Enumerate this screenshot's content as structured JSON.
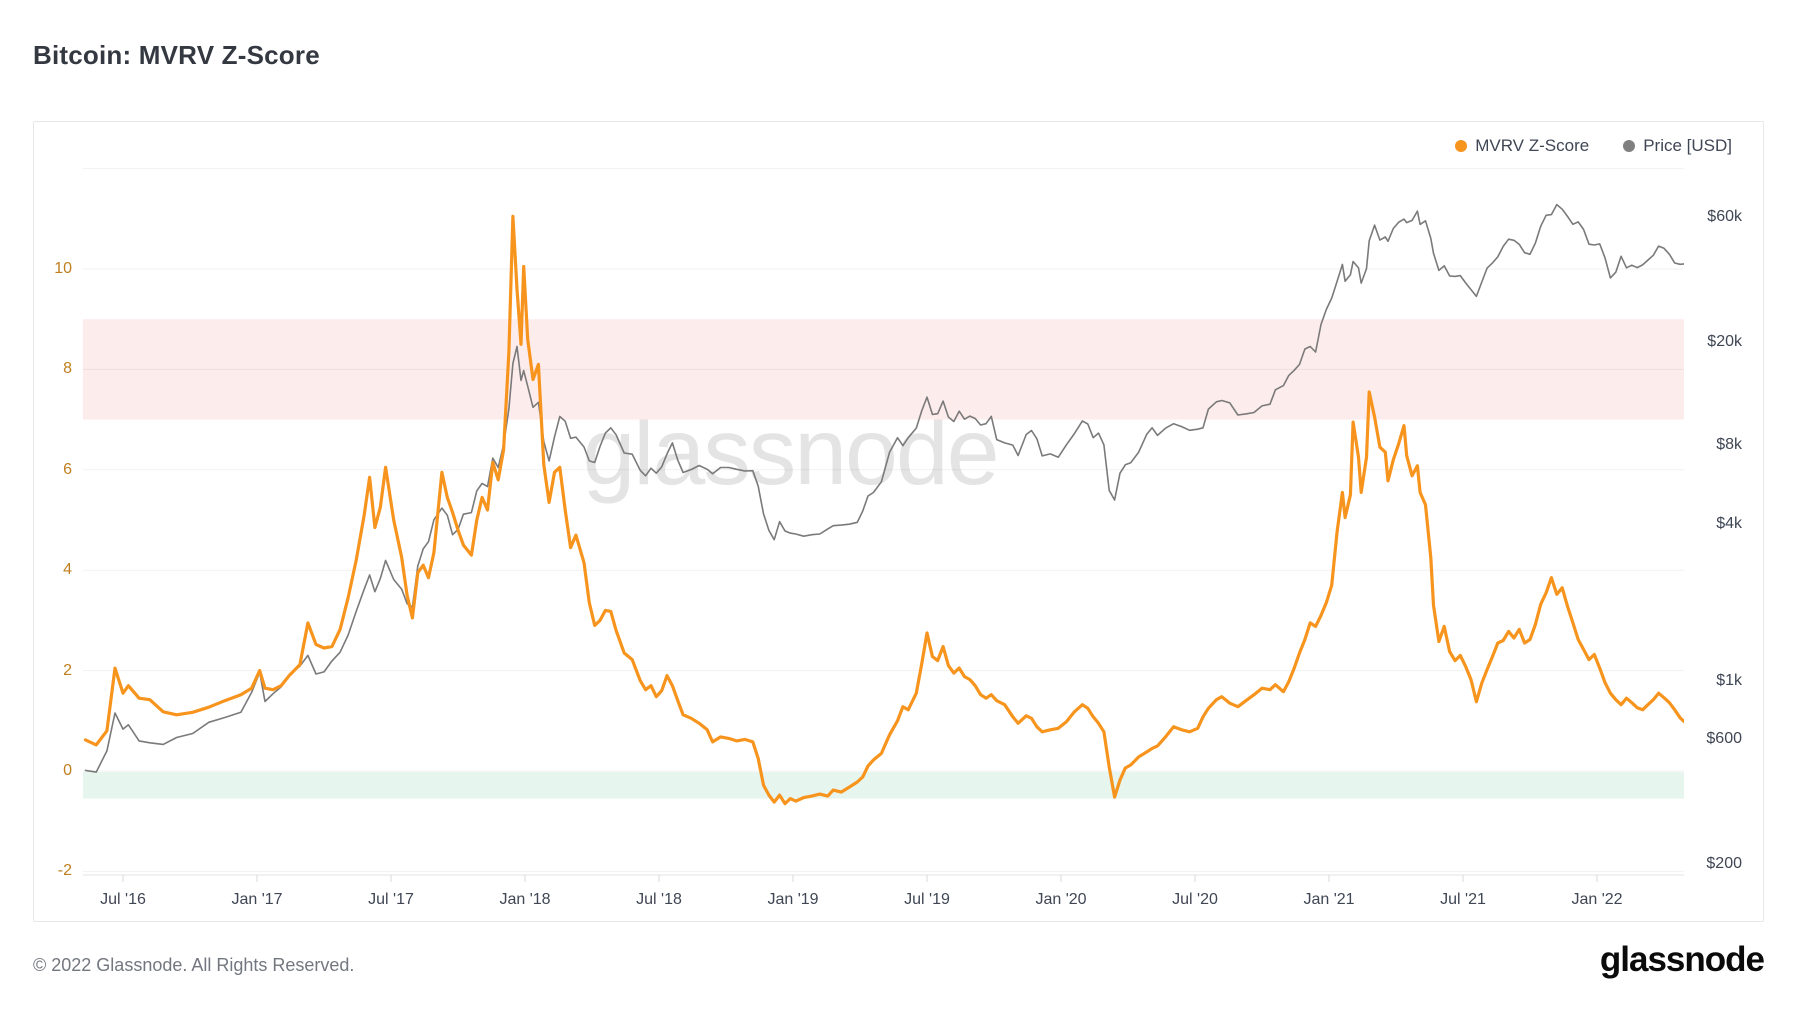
{
  "page": {
    "title": "Bitcoin: MVRV Z-Score",
    "watermark": "glassnode",
    "footer_copyright": "© 2022 Glassnode. All Rights Reserved.",
    "brand_logo": "glassnode"
  },
  "legend": [
    {
      "label": "MVRV Z-Score",
      "color": "#f7941d"
    },
    {
      "label": "Price [USD]",
      "color": "#808080"
    }
  ],
  "axes": {
    "left": {
      "ticks": [
        -2,
        0,
        2,
        4,
        6,
        8,
        10
      ],
      "color": "#c07f1f"
    },
    "right": {
      "ticks": [
        {
          "label": "$200",
          "value": 200
        },
        {
          "label": "$600",
          "value": 600
        },
        {
          "label": "$1k",
          "value": 1000
        },
        {
          "label": "$4k",
          "value": 4000
        },
        {
          "label": "$8k",
          "value": 8000
        },
        {
          "label": "$20k",
          "value": 20000
        },
        {
          "label": "$60k",
          "value": 60000
        }
      ],
      "scale": "log",
      "color": "#3f4654"
    },
    "bottom": {
      "ticks": [
        {
          "label": "Jul '16",
          "t": 2016.5
        },
        {
          "label": "Jan '17",
          "t": 2017.0
        },
        {
          "label": "Jul '17",
          "t": 2017.5
        },
        {
          "label": "Jan '18",
          "t": 2018.0
        },
        {
          "label": "Jul '18",
          "t": 2018.5
        },
        {
          "label": "Jan '19",
          "t": 2019.0
        },
        {
          "label": "Jul '19",
          "t": 2019.5
        },
        {
          "label": "Jan '20",
          "t": 2020.0
        },
        {
          "label": "Jul '20",
          "t": 2020.5
        },
        {
          "label": "Jan '21",
          "t": 2021.0
        },
        {
          "label": "Jul '21",
          "t": 2021.5
        },
        {
          "label": "Jan '22",
          "t": 2022.0
        }
      ]
    }
  },
  "zones": {
    "overvalued": {
      "from": 7.0,
      "to": 9.0,
      "color": "#fdecec"
    },
    "undervalued": {
      "from": -0.55,
      "to": -0.02,
      "color": "#e7f5ef"
    }
  },
  "chart_data": {
    "type": "line",
    "x_label": "Date",
    "x_range": [
      2016.35,
      2022.33
    ],
    "z_axis": {
      "name": "MVRV Z-Score",
      "ticks": [
        -2,
        0,
        2,
        4,
        6,
        8,
        10
      ]
    },
    "price_axis": {
      "name": "Price [USD]",
      "scale": "log",
      "ticks": [
        "$200",
        "$600",
        "$1k",
        "$4k",
        "$8k",
        "$20k",
        "$60k"
      ]
    },
    "series": [
      {
        "name": "MVRV Z-Score",
        "color": "#f7941d",
        "width": 3.2,
        "column": 1,
        "yaxis": "z"
      },
      {
        "name": "Price [USD]",
        "color": "#7a7a7a",
        "width": 1.6,
        "column": 2,
        "yaxis": "price"
      }
    ],
    "points": [
      [
        2016.36,
        0.62,
        455
      ],
      [
        2016.4,
        0.52,
        448
      ],
      [
        2016.44,
        0.8,
        540
      ],
      [
        2016.47,
        2.05,
        755
      ],
      [
        2016.5,
        1.55,
        655
      ],
      [
        2016.52,
        1.7,
        680
      ],
      [
        2016.56,
        1.45,
        590
      ],
      [
        2016.6,
        1.42,
        580
      ],
      [
        2016.65,
        1.18,
        572
      ],
      [
        2016.7,
        1.12,
        608
      ],
      [
        2016.76,
        1.17,
        630
      ],
      [
        2016.82,
        1.27,
        695
      ],
      [
        2016.88,
        1.4,
        725
      ],
      [
        2016.94,
        1.52,
        760
      ],
      [
        2016.98,
        1.65,
        905
      ],
      [
        2017.01,
        2.0,
        1080
      ],
      [
        2017.03,
        1.65,
        835
      ],
      [
        2017.06,
        1.62,
        895
      ],
      [
        2017.09,
        1.7,
        950
      ],
      [
        2017.12,
        1.9,
        1060
      ],
      [
        2017.16,
        2.12,
        1140
      ],
      [
        2017.19,
        2.95,
        1255
      ],
      [
        2017.22,
        2.52,
        1065
      ],
      [
        2017.25,
        2.45,
        1085
      ],
      [
        2017.28,
        2.48,
        1195
      ],
      [
        2017.31,
        2.82,
        1290
      ],
      [
        2017.34,
        3.45,
        1500
      ],
      [
        2017.37,
        4.2,
        1850
      ],
      [
        2017.4,
        5.1,
        2250
      ],
      [
        2017.42,
        5.85,
        2550
      ],
      [
        2017.44,
        4.85,
        2200
      ],
      [
        2017.46,
        5.25,
        2470
      ],
      [
        2017.48,
        6.05,
        2900
      ],
      [
        2017.51,
        5.0,
        2450
      ],
      [
        2017.54,
        4.25,
        2250
      ],
      [
        2017.56,
        3.5,
        1980
      ],
      [
        2017.58,
        3.05,
        1920
      ],
      [
        2017.6,
        3.95,
        2760
      ],
      [
        2017.62,
        4.1,
        3210
      ],
      [
        2017.64,
        3.85,
        3420
      ],
      [
        2017.66,
        4.35,
        4150
      ],
      [
        2017.69,
        5.95,
        4600
      ],
      [
        2017.71,
        5.45,
        4320
      ],
      [
        2017.73,
        5.15,
        3640
      ],
      [
        2017.75,
        4.8,
        3810
      ],
      [
        2017.77,
        4.5,
        4360
      ],
      [
        2017.8,
        4.3,
        4420
      ],
      [
        2017.82,
        5.0,
        5360
      ],
      [
        2017.84,
        5.45,
        5720
      ],
      [
        2017.86,
        5.2,
        5560
      ],
      [
        2017.88,
        6.15,
        7150
      ],
      [
        2017.9,
        5.8,
        6580
      ],
      [
        2017.92,
        6.4,
        8060
      ],
      [
        2017.94,
        8.35,
        11050
      ],
      [
        2017.955,
        11.05,
        16480
      ],
      [
        2017.97,
        9.6,
        19150
      ],
      [
        2017.985,
        8.5,
        14200
      ],
      [
        2017.995,
        10.05,
        15480
      ],
      [
        2018.01,
        8.6,
        13480
      ],
      [
        2018.03,
        7.8,
        11200
      ],
      [
        2018.05,
        8.1,
        11700
      ],
      [
        2018.07,
        6.1,
        8270
      ],
      [
        2018.09,
        5.35,
        6980
      ],
      [
        2018.11,
        5.95,
        8620
      ],
      [
        2018.13,
        6.05,
        10320
      ],
      [
        2018.15,
        5.2,
        9900
      ],
      [
        2018.17,
        4.45,
        8520
      ],
      [
        2018.19,
        4.7,
        8610
      ],
      [
        2018.22,
        4.15,
        7890
      ],
      [
        2018.24,
        3.35,
        6980
      ],
      [
        2018.26,
        2.9,
        6880
      ],
      [
        2018.28,
        3.0,
        7920
      ],
      [
        2018.3,
        3.2,
        8920
      ],
      [
        2018.32,
        3.18,
        9340
      ],
      [
        2018.34,
        2.8,
        8780
      ],
      [
        2018.37,
        2.35,
        7480
      ],
      [
        2018.4,
        2.22,
        7400
      ],
      [
        2018.43,
        1.8,
        6420
      ],
      [
        2018.45,
        1.62,
        6120
      ],
      [
        2018.47,
        1.7,
        6540
      ],
      [
        2018.49,
        1.48,
        6260
      ],
      [
        2018.51,
        1.6,
        6620
      ],
      [
        2018.53,
        1.9,
        7420
      ],
      [
        2018.55,
        1.7,
        8180
      ],
      [
        2018.57,
        1.4,
        7020
      ],
      [
        2018.59,
        1.12,
        6300
      ],
      [
        2018.62,
        1.05,
        6470
      ],
      [
        2018.65,
        0.95,
        6700
      ],
      [
        2018.68,
        0.82,
        6480
      ],
      [
        2018.7,
        0.58,
        6230
      ],
      [
        2018.73,
        0.68,
        6580
      ],
      [
        2018.76,
        0.65,
        6580
      ],
      [
        2018.79,
        0.6,
        6480
      ],
      [
        2018.82,
        0.63,
        6380
      ],
      [
        2018.85,
        0.58,
        6400
      ],
      [
        2018.87,
        0.25,
        5580
      ],
      [
        2018.89,
        -0.28,
        4380
      ],
      [
        2018.91,
        -0.48,
        3780
      ],
      [
        2018.93,
        -0.62,
        3480
      ],
      [
        2018.95,
        -0.48,
        4080
      ],
      [
        2018.97,
        -0.65,
        3760
      ],
      [
        2018.99,
        -0.55,
        3690
      ],
      [
        2019.01,
        -0.6,
        3660
      ],
      [
        2019.04,
        -0.53,
        3590
      ],
      [
        2019.07,
        -0.5,
        3640
      ],
      [
        2019.1,
        -0.46,
        3660
      ],
      [
        2019.13,
        -0.5,
        3830
      ],
      [
        2019.15,
        -0.38,
        3940
      ],
      [
        2019.18,
        -0.42,
        3960
      ],
      [
        2019.21,
        -0.32,
        3990
      ],
      [
        2019.24,
        -0.22,
        4060
      ],
      [
        2019.26,
        -0.12,
        4480
      ],
      [
        2019.28,
        0.1,
        5120
      ],
      [
        2019.3,
        0.22,
        5280
      ],
      [
        2019.33,
        0.35,
        5800
      ],
      [
        2019.36,
        0.72,
        7520
      ],
      [
        2019.39,
        1.0,
        8560
      ],
      [
        2019.41,
        1.28,
        7980
      ],
      [
        2019.43,
        1.22,
        8560
      ],
      [
        2019.46,
        1.55,
        9320
      ],
      [
        2019.48,
        2.12,
        10820
      ],
      [
        2019.5,
        2.75,
        12250
      ],
      [
        2019.52,
        2.28,
        10520
      ],
      [
        2019.54,
        2.2,
        10580
      ],
      [
        2019.56,
        2.48,
        11820
      ],
      [
        2019.58,
        2.1,
        10280
      ],
      [
        2019.6,
        1.95,
        9880
      ],
      [
        2019.62,
        2.05,
        10820
      ],
      [
        2019.64,
        1.88,
        10080
      ],
      [
        2019.66,
        1.82,
        10360
      ],
      [
        2019.68,
        1.7,
        10140
      ],
      [
        2019.7,
        1.52,
        9580
      ],
      [
        2019.72,
        1.45,
        9690
      ],
      [
        2019.74,
        1.52,
        10330
      ],
      [
        2019.76,
        1.4,
        8420
      ],
      [
        2019.79,
        1.32,
        8180
      ],
      [
        2019.82,
        1.08,
        8020
      ],
      [
        2019.84,
        0.95,
        7320
      ],
      [
        2019.87,
        1.1,
        8810
      ],
      [
        2019.89,
        1.05,
        9120
      ],
      [
        2019.91,
        0.88,
        8480
      ],
      [
        2019.93,
        0.78,
        7290
      ],
      [
        2019.96,
        0.82,
        7420
      ],
      [
        2019.99,
        0.85,
        7210
      ],
      [
        2020.02,
        0.98,
        8040
      ],
      [
        2020.05,
        1.18,
        8880
      ],
      [
        2020.08,
        1.32,
        9930
      ],
      [
        2020.1,
        1.25,
        9660
      ],
      [
        2020.12,
        1.08,
        8560
      ],
      [
        2020.14,
        0.95,
        8920
      ],
      [
        2020.16,
        0.78,
        8040
      ],
      [
        2020.18,
        0.08,
        5380
      ],
      [
        2020.2,
        -0.52,
        4940
      ],
      [
        2020.22,
        -0.18,
        6260
      ],
      [
        2020.24,
        0.06,
        6740
      ],
      [
        2020.26,
        0.12,
        6860
      ],
      [
        2020.29,
        0.28,
        7540
      ],
      [
        2020.32,
        0.38,
        8830
      ],
      [
        2020.34,
        0.45,
        9340
      ],
      [
        2020.36,
        0.5,
        8740
      ],
      [
        2020.39,
        0.68,
        9310
      ],
      [
        2020.42,
        0.88,
        9690
      ],
      [
        2020.45,
        0.82,
        9440
      ],
      [
        2020.48,
        0.78,
        9140
      ],
      [
        2020.51,
        0.85,
        9230
      ],
      [
        2020.53,
        1.08,
        9340
      ],
      [
        2020.55,
        1.25,
        11020
      ],
      [
        2020.58,
        1.42,
        11750
      ],
      [
        2020.6,
        1.48,
        11890
      ],
      [
        2020.63,
        1.35,
        11640
      ],
      [
        2020.66,
        1.28,
        10460
      ],
      [
        2020.69,
        1.4,
        10560
      ],
      [
        2020.72,
        1.52,
        10690
      ],
      [
        2020.75,
        1.65,
        11330
      ],
      [
        2020.78,
        1.62,
        11510
      ],
      [
        2020.8,
        1.72,
        13060
      ],
      [
        2020.83,
        1.58,
        13560
      ],
      [
        2020.85,
        1.78,
        14840
      ],
      [
        2020.87,
        2.05,
        15520
      ],
      [
        2020.89,
        2.35,
        16340
      ],
      [
        2020.91,
        2.62,
        18720
      ],
      [
        2020.93,
        2.95,
        19140
      ],
      [
        2020.95,
        2.88,
        18230
      ],
      [
        2020.97,
        3.1,
        23240
      ],
      [
        2020.99,
        3.35,
        26520
      ],
      [
        2021.01,
        3.7,
        29350
      ],
      [
        2021.03,
        4.75,
        33920
      ],
      [
        2021.05,
        5.55,
        39480
      ],
      [
        2021.06,
        5.05,
        34020
      ],
      [
        2021.08,
        5.5,
        36040
      ],
      [
        2021.09,
        6.95,
        40520
      ],
      [
        2021.11,
        6.25,
        38290
      ],
      [
        2021.12,
        5.55,
        33480
      ],
      [
        2021.14,
        6.25,
        38050
      ],
      [
        2021.15,
        7.55,
        48620
      ],
      [
        2021.17,
        7.05,
        55880
      ],
      [
        2021.19,
        6.45,
        48920
      ],
      [
        2021.21,
        6.35,
        50340
      ],
      [
        2021.22,
        5.78,
        48410
      ],
      [
        2021.24,
        6.2,
        54210
      ],
      [
        2021.26,
        6.52,
        57300
      ],
      [
        2021.28,
        6.88,
        58910
      ],
      [
        2021.29,
        6.28,
        57120
      ],
      [
        2021.31,
        5.88,
        58220
      ],
      [
        2021.33,
        6.08,
        63220
      ],
      [
        2021.34,
        5.55,
        56210
      ],
      [
        2021.36,
        5.3,
        58010
      ],
      [
        2021.38,
        4.25,
        49680
      ],
      [
        2021.39,
        3.3,
        43580
      ],
      [
        2021.41,
        2.58,
        37460
      ],
      [
        2021.43,
        2.88,
        39010
      ],
      [
        2021.45,
        2.38,
        35690
      ],
      [
        2021.47,
        2.2,
        35520
      ],
      [
        2021.49,
        2.3,
        35790
      ],
      [
        2021.51,
        2.08,
        33510
      ],
      [
        2021.53,
        1.82,
        31620
      ],
      [
        2021.55,
        1.38,
        29790
      ],
      [
        2021.57,
        1.75,
        33810
      ],
      [
        2021.59,
        2.02,
        38210
      ],
      [
        2021.61,
        2.28,
        40010
      ],
      [
        2021.63,
        2.55,
        42230
      ],
      [
        2021.65,
        2.6,
        46290
      ],
      [
        2021.67,
        2.78,
        49310
      ],
      [
        2021.69,
        2.65,
        48860
      ],
      [
        2021.71,
        2.82,
        47120
      ],
      [
        2021.73,
        2.55,
        43790
      ],
      [
        2021.75,
        2.62,
        43180
      ],
      [
        2021.77,
        2.92,
        47710
      ],
      [
        2021.79,
        3.32,
        55290
      ],
      [
        2021.81,
        3.55,
        60890
      ],
      [
        2021.83,
        3.85,
        61310
      ],
      [
        2021.85,
        3.52,
        66920
      ],
      [
        2021.87,
        3.65,
        64280
      ],
      [
        2021.89,
        3.28,
        60320
      ],
      [
        2021.91,
        2.95,
        56280
      ],
      [
        2021.93,
        2.62,
        57480
      ],
      [
        2021.95,
        2.42,
        53720
      ],
      [
        2021.97,
        2.22,
        47190
      ],
      [
        2021.99,
        2.32,
        46880
      ],
      [
        2022.01,
        2.05,
        47320
      ],
      [
        2022.03,
        1.76,
        41870
      ],
      [
        2022.05,
        1.55,
        35060
      ],
      [
        2022.07,
        1.42,
        36860
      ],
      [
        2022.09,
        1.32,
        42410
      ],
      [
        2022.11,
        1.45,
        38330
      ],
      [
        2022.13,
        1.36,
        39230
      ],
      [
        2022.15,
        1.26,
        38390
      ],
      [
        2022.17,
        1.22,
        39310
      ],
      [
        2022.19,
        1.32,
        41020
      ],
      [
        2022.21,
        1.42,
        42810
      ],
      [
        2022.23,
        1.55,
        46420
      ],
      [
        2022.25,
        1.46,
        45520
      ],
      [
        2022.27,
        1.36,
        43190
      ],
      [
        2022.29,
        1.22,
        39980
      ],
      [
        2022.31,
        1.06,
        39520
      ],
      [
        2022.33,
        0.96,
        39720
      ]
    ]
  }
}
